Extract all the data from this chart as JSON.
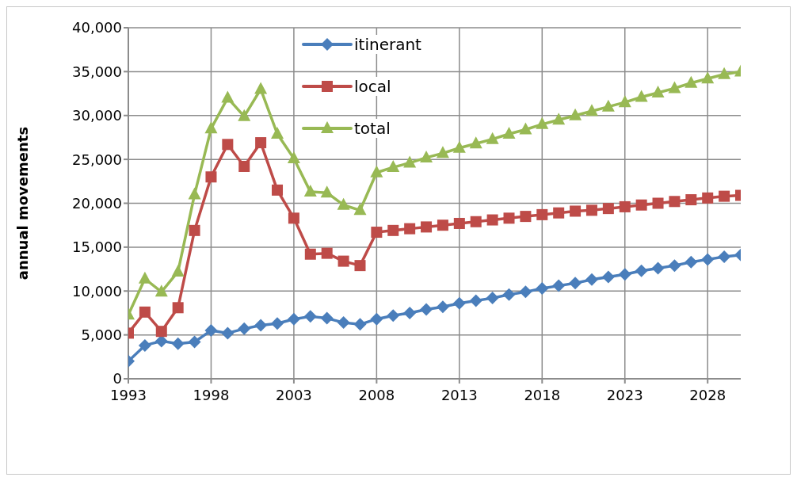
{
  "chart_data": {
    "type": "line",
    "ylabel": "annual movements",
    "x": [
      1993,
      1994,
      1995,
      1996,
      1997,
      1998,
      1999,
      2000,
      2001,
      2002,
      2003,
      2004,
      2005,
      2006,
      2007,
      2008,
      2009,
      2010,
      2011,
      2012,
      2013,
      2014,
      2015,
      2016,
      2017,
      2018,
      2019,
      2020,
      2021,
      2022,
      2023,
      2024,
      2025,
      2026,
      2027,
      2028,
      2029,
      2030
    ],
    "series": [
      {
        "name": "itinerant",
        "color": "#4a7ebb",
        "marker": "diamond",
        "values": [
          2000,
          3800,
          4300,
          4000,
          4200,
          5500,
          5200,
          5700,
          6100,
          6300,
          6800,
          7100,
          6900,
          6400,
          6200,
          6800,
          7200,
          7500,
          7900,
          8200,
          8600,
          8900,
          9200,
          9600,
          9900,
          10300,
          10600,
          10900,
          11300,
          11600,
          11900,
          12300,
          12600,
          12900,
          13300,
          13600,
          13900,
          14100
        ]
      },
      {
        "name": "local",
        "color": "#be4b48",
        "marker": "square",
        "values": [
          5200,
          7600,
          5400,
          8100,
          16900,
          23000,
          26700,
          24200,
          26900,
          21500,
          18300,
          14200,
          14300,
          13400,
          12900,
          16700,
          16900,
          17100,
          17300,
          17500,
          17700,
          17900,
          18100,
          18300,
          18500,
          18700,
          18900,
          19100,
          19200,
          19400,
          19600,
          19800,
          20000,
          20200,
          20400,
          20600,
          20800,
          20900
        ]
      },
      {
        "name": "total",
        "color": "#98b954",
        "marker": "triangle",
        "values": [
          7300,
          11400,
          9900,
          12200,
          21000,
          28500,
          32000,
          29900,
          33000,
          27900,
          25100,
          21300,
          21200,
          19800,
          19200,
          23500,
          24100,
          24600,
          25200,
          25700,
          26300,
          26800,
          27300,
          27900,
          28400,
          29000,
          29500,
          30000,
          30500,
          31000,
          31500,
          32100,
          32600,
          33100,
          33700,
          34200,
          34700,
          35000
        ]
      }
    ],
    "xlim": [
      1993,
      2030
    ],
    "xticks": [
      1993,
      1998,
      2003,
      2008,
      2013,
      2018,
      2023,
      2028
    ],
    "ylim": [
      0,
      40000
    ],
    "yticks": [
      0,
      {
        "value": 5000,
        "label": "5,000"
      },
      {
        "value": 10000,
        "label": "10,000"
      },
      {
        "value": 15000,
        "label": "15,000"
      },
      {
        "value": 20000,
        "label": "20,000"
      },
      {
        "value": 25000,
        "label": "25,000"
      },
      {
        "value": 30000,
        "label": "30,000"
      },
      {
        "value": 35000,
        "label": "35,000"
      },
      {
        "value": 40000,
        "label": "40,000"
      }
    ],
    "grid": true,
    "legend": "top",
    "line_style": "solid"
  }
}
